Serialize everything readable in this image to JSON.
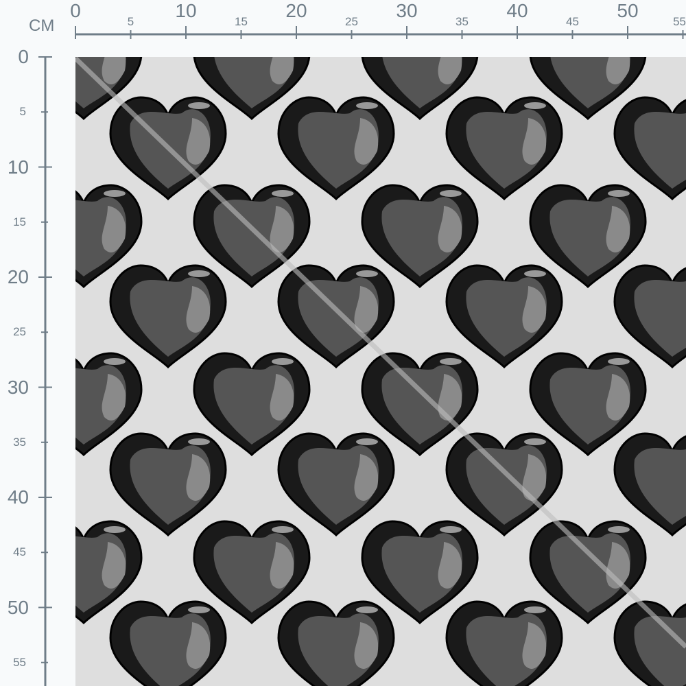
{
  "ruler": {
    "unit": "CM",
    "top_labels": [
      "0",
      "5",
      "10",
      "15",
      "20",
      "25",
      "30",
      "35",
      "40",
      "45",
      "50",
      "55"
    ],
    "left_labels": [
      "0",
      "5",
      "10",
      "15",
      "20",
      "25",
      "30",
      "35",
      "40",
      "45",
      "50",
      "55"
    ]
  },
  "colors": {
    "ruler": "#6f7d88",
    "fabric_background": "#dedede",
    "heart_dark": "#1a1a1a",
    "heart_mid": "#555555",
    "heart_light": "#8a8a8a"
  },
  "pattern": {
    "motif": "heart-icon",
    "style": "glossy black hearts on light grey"
  }
}
